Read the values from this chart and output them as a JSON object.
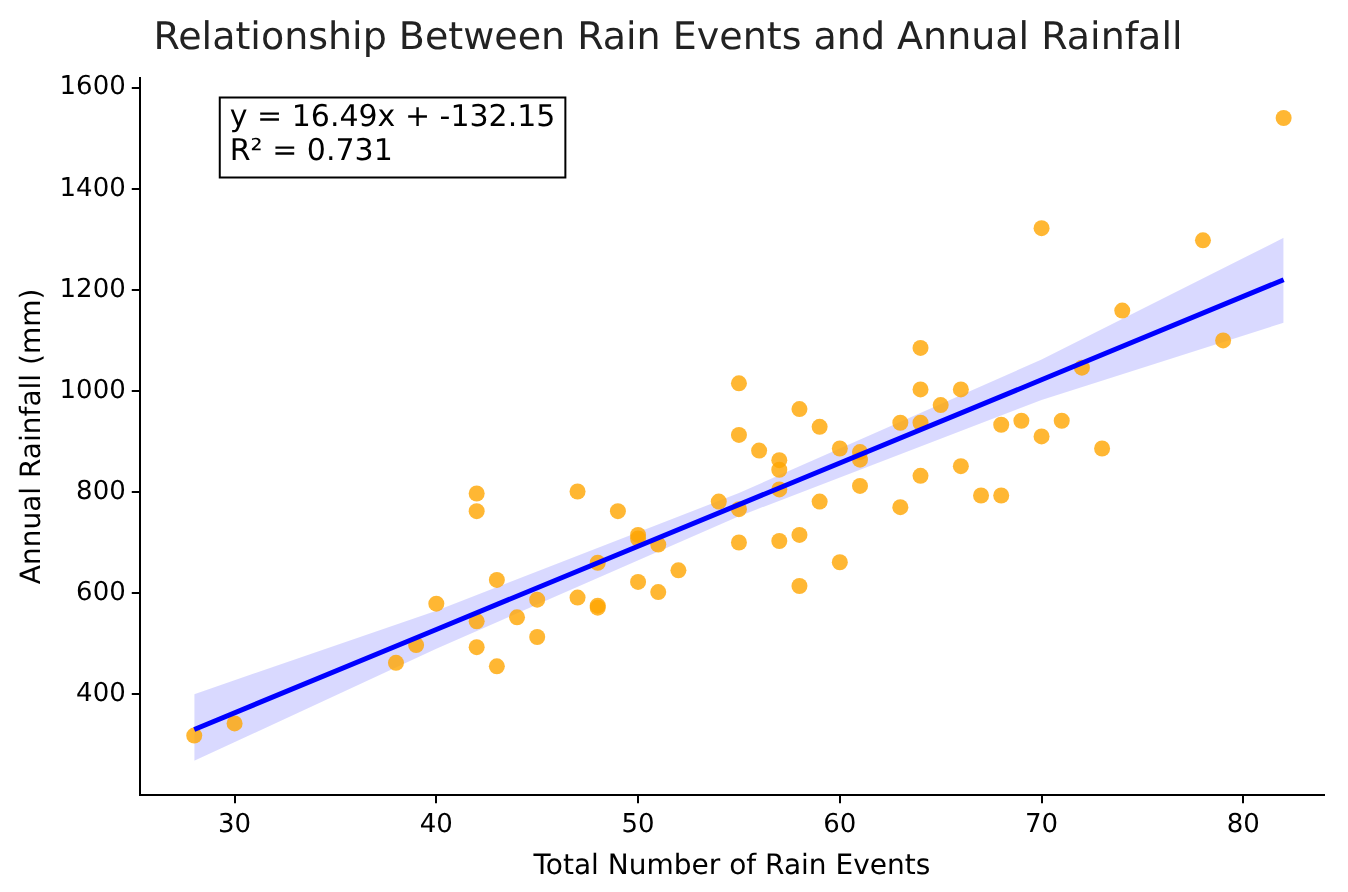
{
  "chart_data": {
    "type": "scatter",
    "title": "Relationship Between Rain Events and Annual Rainfall",
    "xlabel": "Total Number of Rain Events",
    "ylabel": "Annual Rainfall (mm)",
    "annotations": [
      "y = 16.49x + -132.15",
      "R² = 0.731"
    ],
    "xlim": [
      25.3,
      84
    ],
    "ylim": [
      200,
      1620
    ],
    "xticks": [
      30,
      40,
      50,
      60,
      70,
      80
    ],
    "yticks": [
      400,
      600,
      800,
      1000,
      1200,
      1400,
      1600
    ],
    "grid": false,
    "legend": false,
    "marker": "circle",
    "series": [
      {
        "color": "#ffa500",
        "x": [
          28,
          30,
          38,
          39,
          40,
          42,
          42,
          42,
          42,
          43,
          43,
          44,
          45,
          45,
          47,
          47,
          48,
          48,
          48,
          49,
          50,
          50,
          50,
          51,
          51,
          52,
          54,
          55,
          55,
          55,
          55,
          56,
          57,
          57,
          57,
          57,
          58,
          58,
          58,
          59,
          59,
          60,
          60,
          61,
          61,
          61,
          63,
          63,
          64,
          64,
          64,
          64,
          65,
          66,
          66,
          67,
          68,
          68,
          69,
          70,
          70,
          71,
          72,
          73,
          74,
          78,
          79,
          82
        ],
        "values": [
          318,
          342,
          462,
          497,
          579,
          797,
          762,
          544,
          493,
          626,
          455,
          552,
          587,
          513,
          801,
          591,
          660,
          575,
          571,
          762,
          715,
          708,
          622,
          696,
          602,
          645,
          781,
          1015,
          913,
          766,
          700,
          882,
          863,
          844,
          805,
          703,
          964,
          715,
          614,
          929,
          781,
          886,
          661,
          879,
          864,
          812,
          937,
          770,
          1085,
          1003,
          937,
          832,
          972,
          1003,
          851,
          793,
          793,
          933,
          941,
          1322,
          910,
          941,
          1046,
          886,
          1159,
          1298,
          1100,
          1540
        ]
      },
      {
        "type": "line",
        "color": "#0000ff",
        "x": [
          28,
          40,
          55,
          70,
          82
        ],
        "values": [
          330,
          528,
          775,
          1022,
          1220
        ],
        "lower": [
          268,
          490,
          752,
          982,
          1135
        ],
        "upper": [
          400,
          565,
          798,
          1062,
          1303
        ],
        "line_style": "solid",
        "marker": "none"
      }
    ]
  }
}
